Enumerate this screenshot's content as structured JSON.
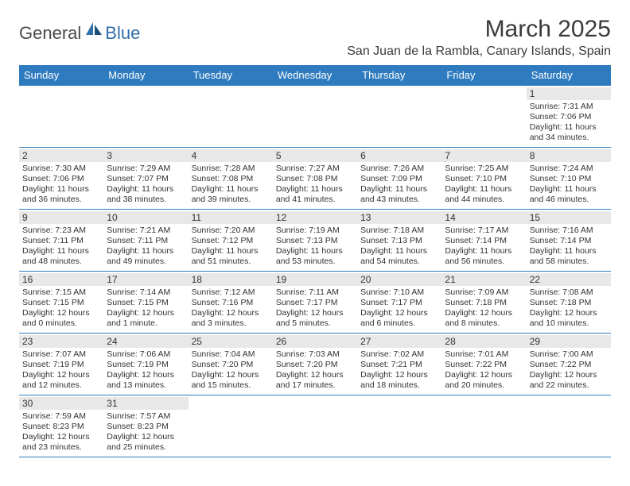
{
  "logo": {
    "part1": "General",
    "part2": "Blue"
  },
  "title": "March 2025",
  "location": "San Juan de la Rambla, Canary Islands, Spain",
  "colors": {
    "header_bg": "#2f7bbf",
    "header_text": "#ffffff",
    "cell_border": "#2f7bbf",
    "daynum_bg": "#e8e8e8",
    "text": "#333333",
    "logo_gray": "#4a4a4a",
    "logo_blue": "#2f6fa8"
  },
  "weekdays": [
    "Sunday",
    "Monday",
    "Tuesday",
    "Wednesday",
    "Thursday",
    "Friday",
    "Saturday"
  ],
  "weeks": [
    [
      {
        "empty": true
      },
      {
        "empty": true
      },
      {
        "empty": true
      },
      {
        "empty": true
      },
      {
        "empty": true
      },
      {
        "empty": true
      },
      {
        "day": "1",
        "sunrise": "Sunrise: 7:31 AM",
        "sunset": "Sunset: 7:06 PM",
        "daylight": "Daylight: 11 hours and 34 minutes."
      }
    ],
    [
      {
        "day": "2",
        "sunrise": "Sunrise: 7:30 AM",
        "sunset": "Sunset: 7:06 PM",
        "daylight": "Daylight: 11 hours and 36 minutes."
      },
      {
        "day": "3",
        "sunrise": "Sunrise: 7:29 AM",
        "sunset": "Sunset: 7:07 PM",
        "daylight": "Daylight: 11 hours and 38 minutes."
      },
      {
        "day": "4",
        "sunrise": "Sunrise: 7:28 AM",
        "sunset": "Sunset: 7:08 PM",
        "daylight": "Daylight: 11 hours and 39 minutes."
      },
      {
        "day": "5",
        "sunrise": "Sunrise: 7:27 AM",
        "sunset": "Sunset: 7:08 PM",
        "daylight": "Daylight: 11 hours and 41 minutes."
      },
      {
        "day": "6",
        "sunrise": "Sunrise: 7:26 AM",
        "sunset": "Sunset: 7:09 PM",
        "daylight": "Daylight: 11 hours and 43 minutes."
      },
      {
        "day": "7",
        "sunrise": "Sunrise: 7:25 AM",
        "sunset": "Sunset: 7:10 PM",
        "daylight": "Daylight: 11 hours and 44 minutes."
      },
      {
        "day": "8",
        "sunrise": "Sunrise: 7:24 AM",
        "sunset": "Sunset: 7:10 PM",
        "daylight": "Daylight: 11 hours and 46 minutes."
      }
    ],
    [
      {
        "day": "9",
        "sunrise": "Sunrise: 7:23 AM",
        "sunset": "Sunset: 7:11 PM",
        "daylight": "Daylight: 11 hours and 48 minutes."
      },
      {
        "day": "10",
        "sunrise": "Sunrise: 7:21 AM",
        "sunset": "Sunset: 7:11 PM",
        "daylight": "Daylight: 11 hours and 49 minutes."
      },
      {
        "day": "11",
        "sunrise": "Sunrise: 7:20 AM",
        "sunset": "Sunset: 7:12 PM",
        "daylight": "Daylight: 11 hours and 51 minutes."
      },
      {
        "day": "12",
        "sunrise": "Sunrise: 7:19 AM",
        "sunset": "Sunset: 7:13 PM",
        "daylight": "Daylight: 11 hours and 53 minutes."
      },
      {
        "day": "13",
        "sunrise": "Sunrise: 7:18 AM",
        "sunset": "Sunset: 7:13 PM",
        "daylight": "Daylight: 11 hours and 54 minutes."
      },
      {
        "day": "14",
        "sunrise": "Sunrise: 7:17 AM",
        "sunset": "Sunset: 7:14 PM",
        "daylight": "Daylight: 11 hours and 56 minutes."
      },
      {
        "day": "15",
        "sunrise": "Sunrise: 7:16 AM",
        "sunset": "Sunset: 7:14 PM",
        "daylight": "Daylight: 11 hours and 58 minutes."
      }
    ],
    [
      {
        "day": "16",
        "sunrise": "Sunrise: 7:15 AM",
        "sunset": "Sunset: 7:15 PM",
        "daylight": "Daylight: 12 hours and 0 minutes."
      },
      {
        "day": "17",
        "sunrise": "Sunrise: 7:14 AM",
        "sunset": "Sunset: 7:15 PM",
        "daylight": "Daylight: 12 hours and 1 minute."
      },
      {
        "day": "18",
        "sunrise": "Sunrise: 7:12 AM",
        "sunset": "Sunset: 7:16 PM",
        "daylight": "Daylight: 12 hours and 3 minutes."
      },
      {
        "day": "19",
        "sunrise": "Sunrise: 7:11 AM",
        "sunset": "Sunset: 7:17 PM",
        "daylight": "Daylight: 12 hours and 5 minutes."
      },
      {
        "day": "20",
        "sunrise": "Sunrise: 7:10 AM",
        "sunset": "Sunset: 7:17 PM",
        "daylight": "Daylight: 12 hours and 6 minutes."
      },
      {
        "day": "21",
        "sunrise": "Sunrise: 7:09 AM",
        "sunset": "Sunset: 7:18 PM",
        "daylight": "Daylight: 12 hours and 8 minutes."
      },
      {
        "day": "22",
        "sunrise": "Sunrise: 7:08 AM",
        "sunset": "Sunset: 7:18 PM",
        "daylight": "Daylight: 12 hours and 10 minutes."
      }
    ],
    [
      {
        "day": "23",
        "sunrise": "Sunrise: 7:07 AM",
        "sunset": "Sunset: 7:19 PM",
        "daylight": "Daylight: 12 hours and 12 minutes."
      },
      {
        "day": "24",
        "sunrise": "Sunrise: 7:06 AM",
        "sunset": "Sunset: 7:19 PM",
        "daylight": "Daylight: 12 hours and 13 minutes."
      },
      {
        "day": "25",
        "sunrise": "Sunrise: 7:04 AM",
        "sunset": "Sunset: 7:20 PM",
        "daylight": "Daylight: 12 hours and 15 minutes."
      },
      {
        "day": "26",
        "sunrise": "Sunrise: 7:03 AM",
        "sunset": "Sunset: 7:20 PM",
        "daylight": "Daylight: 12 hours and 17 minutes."
      },
      {
        "day": "27",
        "sunrise": "Sunrise: 7:02 AM",
        "sunset": "Sunset: 7:21 PM",
        "daylight": "Daylight: 12 hours and 18 minutes."
      },
      {
        "day": "28",
        "sunrise": "Sunrise: 7:01 AM",
        "sunset": "Sunset: 7:22 PM",
        "daylight": "Daylight: 12 hours and 20 minutes."
      },
      {
        "day": "29",
        "sunrise": "Sunrise: 7:00 AM",
        "sunset": "Sunset: 7:22 PM",
        "daylight": "Daylight: 12 hours and 22 minutes."
      }
    ],
    [
      {
        "day": "30",
        "sunrise": "Sunrise: 7:59 AM",
        "sunset": "Sunset: 8:23 PM",
        "daylight": "Daylight: 12 hours and 23 minutes."
      },
      {
        "day": "31",
        "sunrise": "Sunrise: 7:57 AM",
        "sunset": "Sunset: 8:23 PM",
        "daylight": "Daylight: 12 hours and 25 minutes."
      },
      {
        "empty": true
      },
      {
        "empty": true
      },
      {
        "empty": true
      },
      {
        "empty": true
      },
      {
        "empty": true
      }
    ]
  ]
}
